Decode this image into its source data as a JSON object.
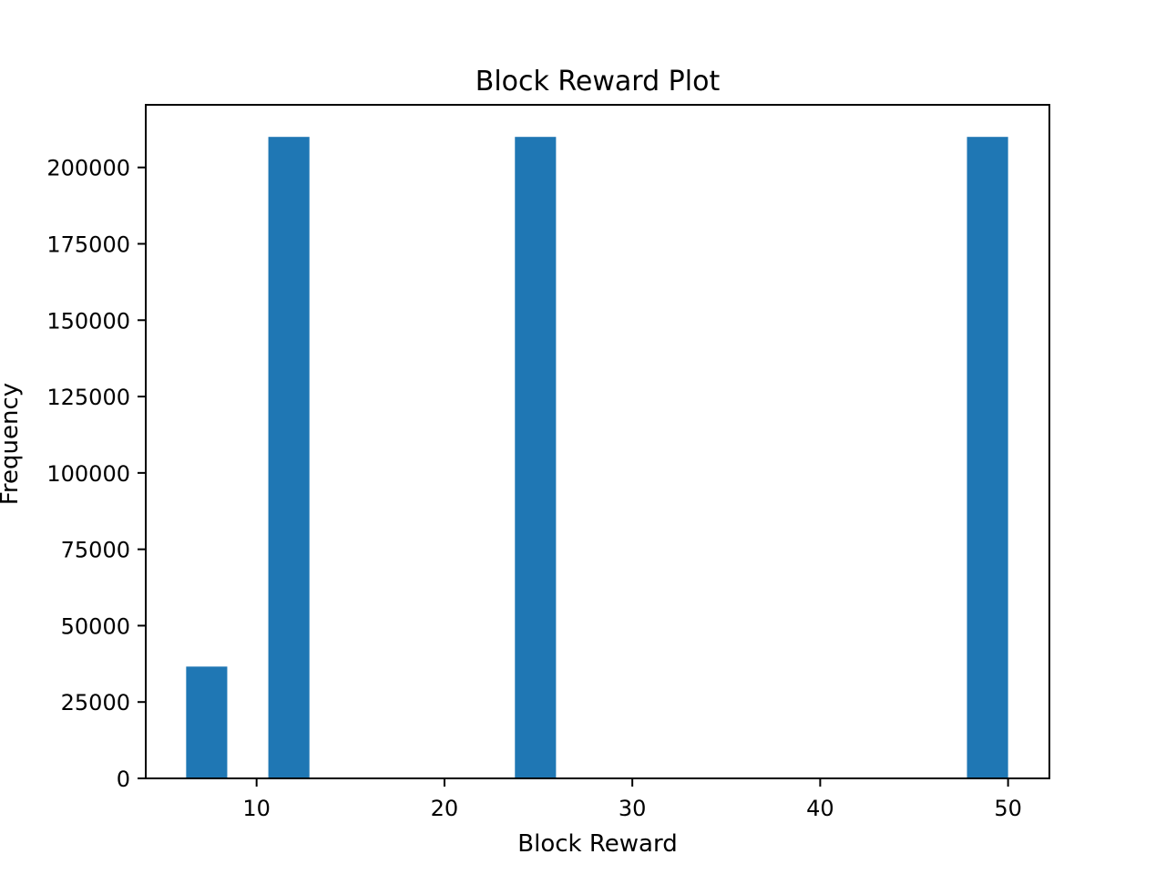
{
  "chart_data": {
    "type": "bar",
    "title": "Block Reward Plot",
    "xlabel": "Block Reward",
    "ylabel": "Frequency",
    "xlim": [
      4.1,
      52.2
    ],
    "ylim": [
      0,
      220500
    ],
    "xticks": [
      10,
      20,
      30,
      40,
      50
    ],
    "yticks": [
      0,
      25000,
      50000,
      75000,
      100000,
      125000,
      150000,
      175000,
      200000
    ],
    "bin_width": 2.1875,
    "bars": [
      {
        "x0": 6.25,
        "value": 36600
      },
      {
        "x0": 10.625,
        "value": 210000
      },
      {
        "x0": 23.75,
        "value": 210000
      },
      {
        "x0": 47.8125,
        "value": 210000
      }
    ],
    "colors": {
      "bar": "#1f77b4",
      "axes": "#000000"
    },
    "grid": false,
    "legend": "none"
  }
}
